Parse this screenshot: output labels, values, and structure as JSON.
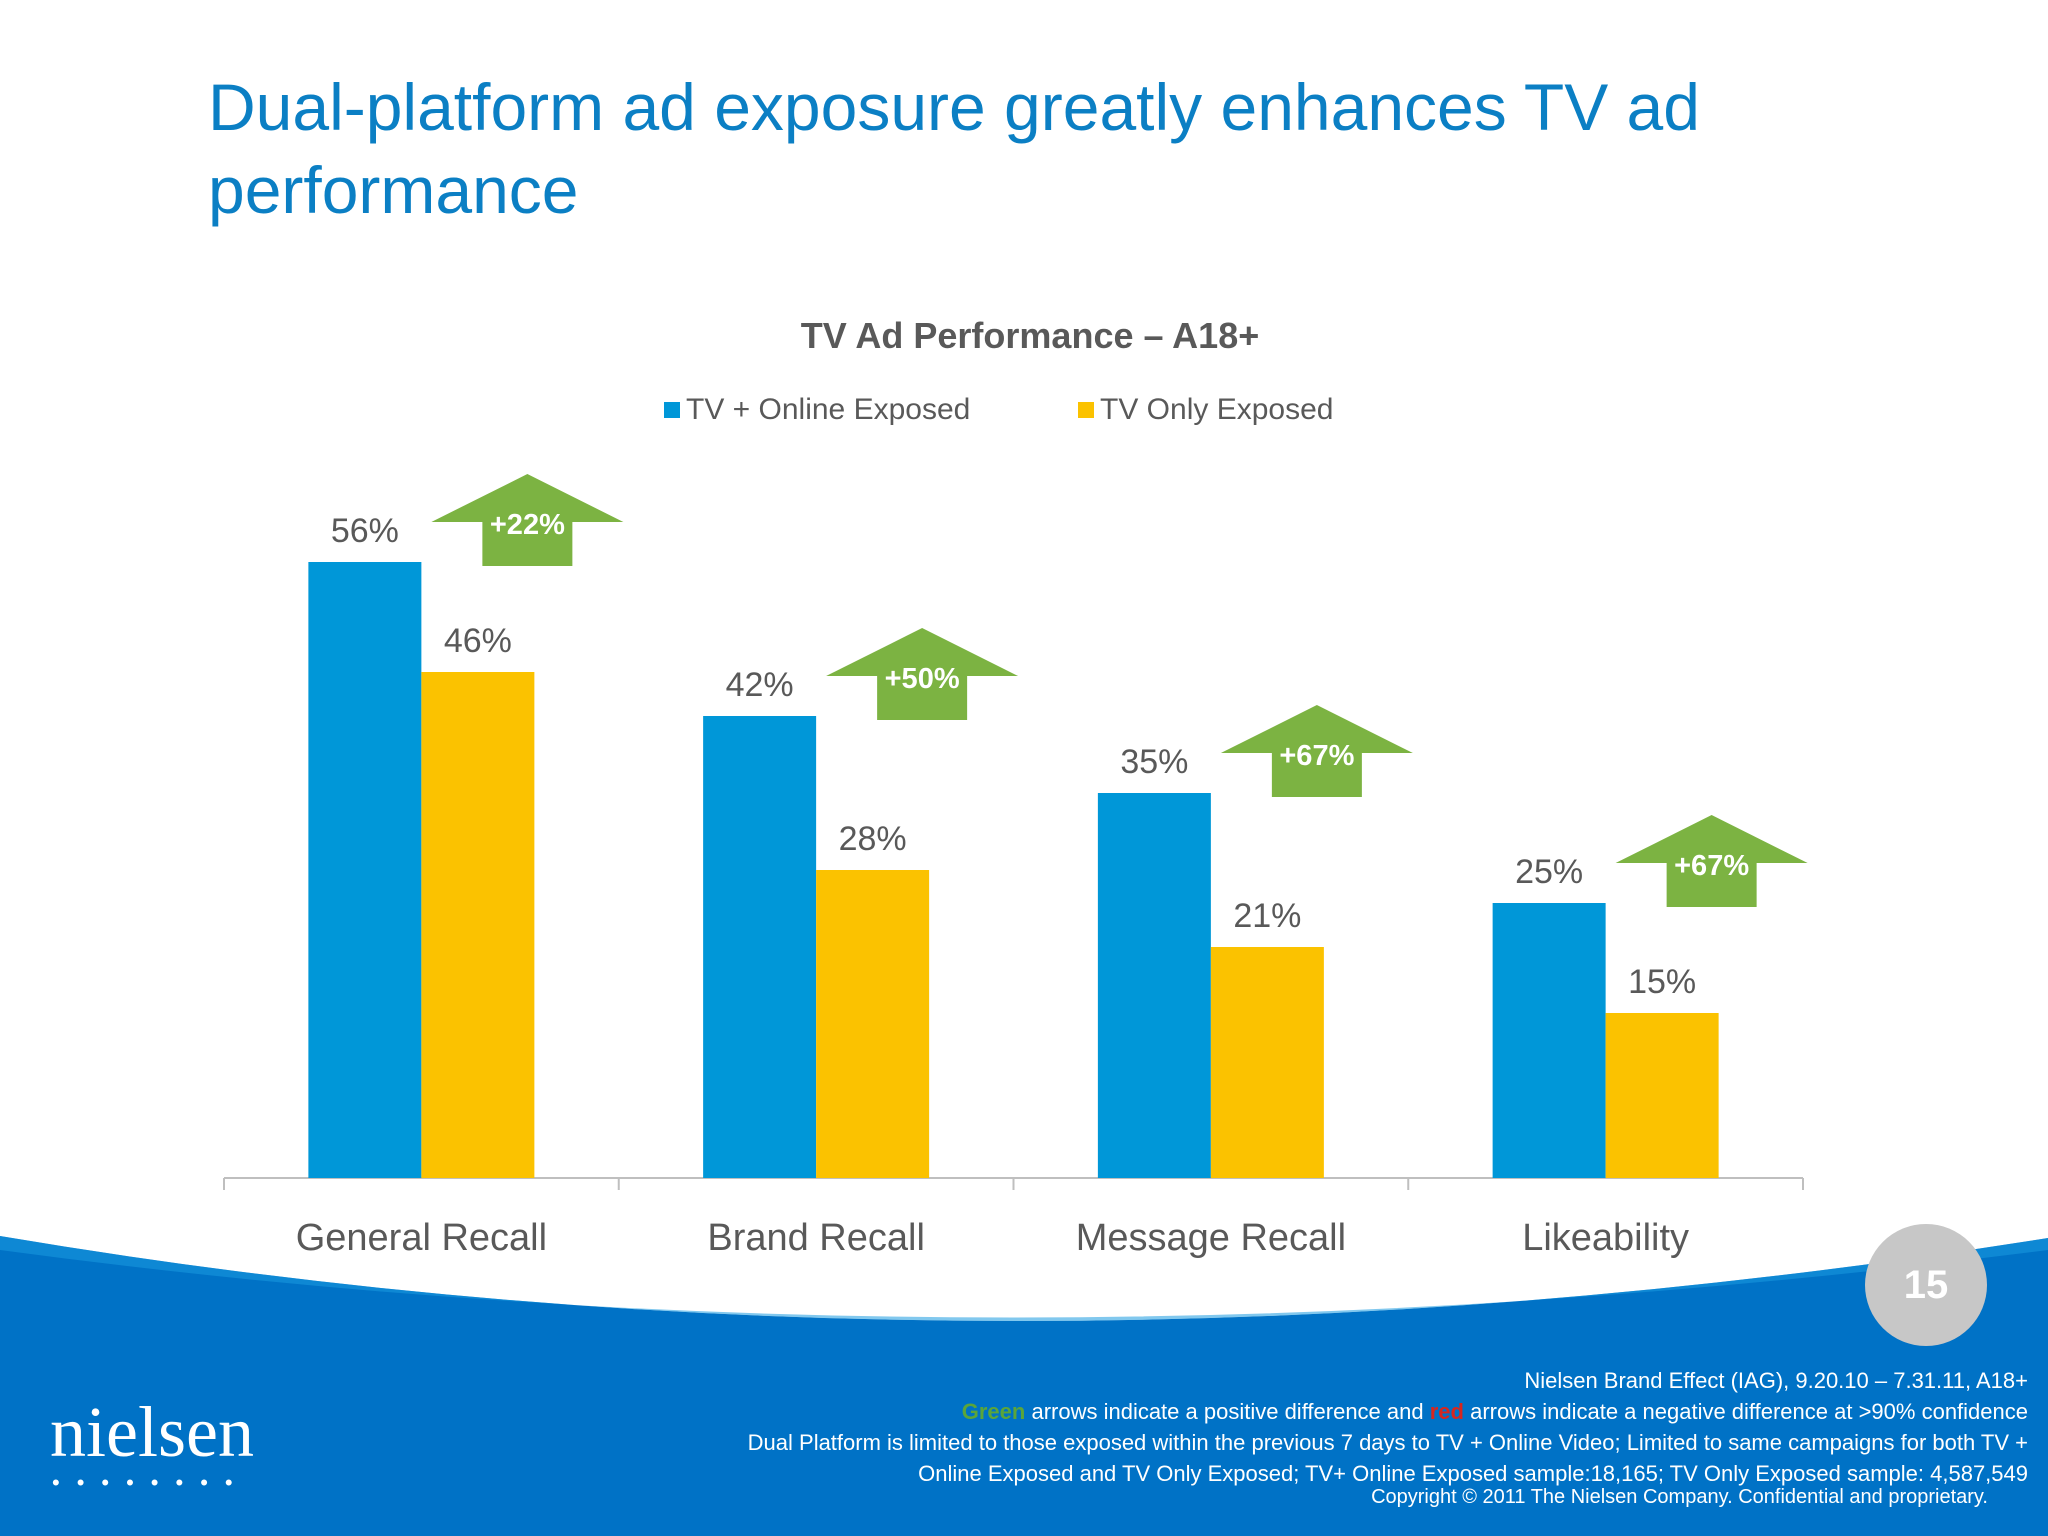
{
  "slide": {
    "title": "Dual-platform ad exposure greatly enhances TV ad performance",
    "page_number": "15"
  },
  "chart_data": {
    "type": "bar",
    "title": "TV Ad Performance – A18+",
    "categories": [
      "General Recall",
      "Brand Recall",
      "Message Recall",
      "Likeability"
    ],
    "series": [
      {
        "name": "TV + Online Exposed",
        "values": [
          56,
          42,
          35,
          25
        ],
        "labels": [
          "56%",
          "42%",
          "35%",
          "25%"
        ],
        "color": "#0097d8"
      },
      {
        "name": "TV Only Exposed",
        "values": [
          46,
          28,
          21,
          15
        ],
        "labels": [
          "46%",
          "28%",
          "21%",
          "15%"
        ],
        "color": "#fbc200"
      }
    ],
    "lift_arrows": [
      "+22%",
      "+50%",
      "+67%",
      "+67%"
    ],
    "arrow_color": "#7cb342",
    "ylim": [
      0,
      60
    ],
    "legend": "top-center",
    "grid": false
  },
  "footer": {
    "logo_text": "nielsen",
    "logo_dots": "••••••••",
    "source": "Nielsen Brand Effect (IAG), 9.20.10 – 7.31.11, A18+",
    "note_green": "Green",
    "note_part1": " arrows indicate a positive difference and ",
    "note_red": "red",
    "note_part2": " arrows indicate a negative difference at >90% confidence",
    "dual_platform_line1": "Dual Platform is limited to those exposed within the previous 7 days  to TV + Online Video; Limited to same campaigns for both TV +",
    "dual_platform_line2": "Online Exposed and TV Only Exposed; TV+ Online Exposed sample:18,165; TV Only Exposed sample: 4,587,549",
    "copyright": "Copyright © 2011 The Nielsen Company. Confidential and proprietary."
  },
  "colors": {
    "title_blue": "#0b7fc4",
    "band_blue": "#0072c6",
    "axis_text": "#595959"
  }
}
